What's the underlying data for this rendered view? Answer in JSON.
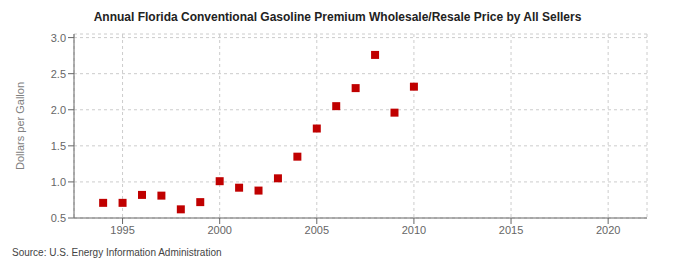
{
  "chart_data": {
    "type": "scatter",
    "title": "Annual Florida Conventional Gasoline Premium Wholesale/Resale Price by All Sellers",
    "ylabel": "Dollars per Gallon",
    "annotations": [
      "Source: U.S. Energy Information Administration"
    ],
    "x": [
      1994,
      1995,
      1996,
      1997,
      1998,
      1999,
      2000,
      2001,
      2002,
      2003,
      2004,
      2005,
      2006,
      2007,
      2008,
      2009,
      2010
    ],
    "values": [
      0.71,
      0.71,
      0.82,
      0.81,
      0.62,
      0.72,
      1.01,
      0.92,
      0.88,
      1.05,
      1.35,
      1.74,
      2.05,
      2.3,
      2.76,
      1.96,
      2.32
    ],
    "color": "#c00000",
    "marker": "square",
    "xlim": [
      1992.5,
      2022
    ],
    "ylim": [
      0.5,
      3.05
    ],
    "xticks": [
      1995,
      2000,
      2005,
      2010,
      2015,
      2020
    ],
    "yticks": [
      0.5,
      {
        "value": 1.0,
        "label": "1.0"
      },
      1.5,
      {
        "value": 2.0,
        "label": "2.0"
      },
      2.5,
      {
        "value": 3.0,
        "label": "3.0"
      }
    ],
    "grid": true
  }
}
